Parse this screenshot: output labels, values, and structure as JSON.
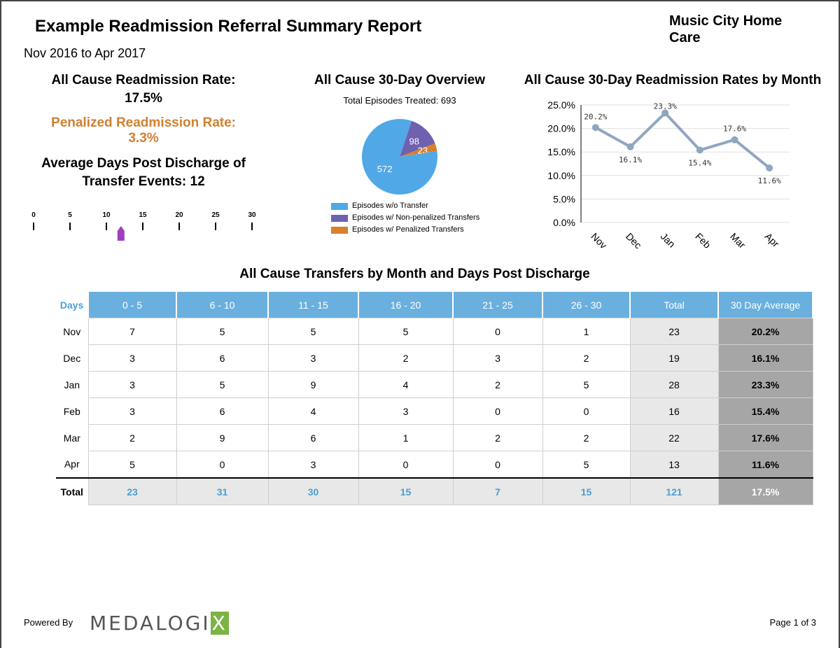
{
  "header": {
    "title": "Example Readmission Referral Summary Report",
    "date_range": "Nov 2016 to Apr 2017",
    "agency_line1": "Music City Home",
    "agency_line2": "Care"
  },
  "kpis": {
    "all_cause_label": "All Cause Readmission Rate:",
    "all_cause_value": "17.5%",
    "penalized_label": "Penalized Readmission Rate:",
    "penalized_value": "3.3%",
    "avg_days_line1": "Average Days Post Discharge of",
    "avg_days_line2": "Transfer Events: 12",
    "colors": {
      "penalized": "#d08030",
      "gauge_marker": "#a040c0"
    }
  },
  "gauge": {
    "ticks": [
      "0",
      "5",
      "10",
      "15",
      "20",
      "25",
      "30"
    ],
    "min": 0,
    "max": 30,
    "marker_value": 12
  },
  "overview": {
    "title": "All Cause 30-Day Overview",
    "subtitle": "Total Episodes Treated: 693"
  },
  "linechart": {
    "title": "All Cause 30-Day Readmission Rates by Month"
  },
  "table": {
    "title": "All Cause Transfers by Month and Days Post Discharge",
    "header": [
      "Days",
      "0 - 5",
      "6 - 10",
      "11 - 15",
      "16 - 20",
      "21 - 25",
      "26 - 30",
      "Total",
      "30 Day Average"
    ],
    "rows": [
      [
        "Nov",
        "7",
        "5",
        "5",
        "5",
        "0",
        "1",
        "23",
        "20.2%"
      ],
      [
        "Dec",
        "3",
        "6",
        "3",
        "2",
        "3",
        "2",
        "19",
        "16.1%"
      ],
      [
        "Jan",
        "3",
        "5",
        "9",
        "4",
        "2",
        "5",
        "28",
        "23.3%"
      ],
      [
        "Feb",
        "3",
        "6",
        "4",
        "3",
        "0",
        "0",
        "16",
        "15.4%"
      ],
      [
        "Mar",
        "2",
        "9",
        "6",
        "1",
        "2",
        "2",
        "22",
        "17.6%"
      ],
      [
        "Apr",
        "5",
        "0",
        "3",
        "0",
        "0",
        "5",
        "13",
        "11.6%"
      ]
    ],
    "total_row": [
      "Total",
      "23",
      "31",
      "30",
      "15",
      "7",
      "15",
      "121",
      "17.5%"
    ],
    "colors": {
      "header_bg": "#6ab0de",
      "total_text": "#4a9fd4",
      "total_col_bg": "#e8e8e8",
      "avg_col_bg": "#a6a6a6"
    }
  },
  "footer": {
    "powered_by": "Powered By",
    "logo_main": "MEDALOGI",
    "logo_x": "X",
    "page": "Page 1 of 3"
  },
  "chart_data": [
    {
      "type": "pie",
      "slices": [
        {
          "label": "Episodes w/o Transfer",
          "value": 572,
          "color": "#50a8e6"
        },
        {
          "label": "Episodes w/ Non-penalized Transfers",
          "value": 98,
          "color": "#7060b0"
        },
        {
          "label": "Episodes w/ Penalized Transfers",
          "value": 23,
          "color": "#d8802c"
        }
      ],
      "legend": "bottom"
    },
    {
      "type": "line",
      "categories": [
        "Nov",
        "Dec",
        "Jan",
        "Feb",
        "Mar",
        "Apr"
      ],
      "values": [
        20.2,
        16.1,
        23.3,
        15.4,
        17.6,
        11.6
      ],
      "data_labels": [
        "20.2%",
        "16.1%",
        "23.3%",
        "15.4%",
        "17.6%",
        "11.6%"
      ],
      "yticks": [
        "0.0%",
        "5.0%",
        "10.0%",
        "15.0%",
        "20.0%",
        "25.0%"
      ],
      "ylim": [
        0,
        25
      ],
      "grid": true,
      "color": "#8fa6c0"
    }
  ]
}
